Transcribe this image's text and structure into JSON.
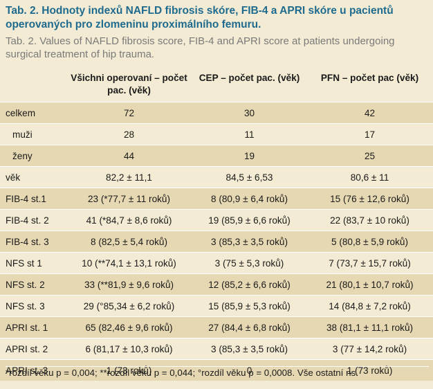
{
  "title_cz": "Tab. 2. Hodnoty indexů NAFLD fibrosis skóre, FIB-4 a APRI skóre u pacientů operovaných pro zlomeninu proximálního femuru.",
  "title_en": "Tab. 2. Values of NAFLD fibrosis score, FIB-4 and APRI score at patients undergoing surgical treatment of hip trauma.",
  "headers": [
    "",
    "Všichni operovaní – počet pac. (věk)",
    "CEP – počet pac. (věk)",
    "PFN – počet pac (věk)"
  ],
  "rows": [
    {
      "label": "celkem",
      "c1": "72",
      "c2": "30",
      "c3": "42"
    },
    {
      "label": "muži",
      "c1": "28",
      "c2": "11",
      "c3": "17"
    },
    {
      "label": "ženy",
      "c1": "44",
      "c2": "19",
      "c3": "25"
    },
    {
      "label": "věk",
      "c1": "82,2 ± 11,1",
      "c2": "84,5 ± 6,53",
      "c3": "80,6 ± 11"
    },
    {
      "label": "FIB-4 st.1",
      "c1": "23 (*77,7 ± 11 roků)",
      "c2": "8 (80,9 ± 6,4 roků)",
      "c3": "15 (76 ± 12,6 roků)"
    },
    {
      "label": "FIB-4 st. 2",
      "c1": "41 (*84,7 ± 8,6 roků)",
      "c2": "19 (85,9 ± 6,6 roků)",
      "c3": "22 (83,7 ± 10 roků)"
    },
    {
      "label": "FIB-4 st. 3",
      "c1": "8 (82,5 ± 5,4 roků)",
      "c2": "3 (85,3 ± 3,5 roků)",
      "c3": "5 (80,8 ± 5,9 roků)"
    },
    {
      "label": "NFS st 1",
      "c1": "10 (**74,1 ± 13,1 roků)",
      "c2": "3 (75 ± 5,3 roků)",
      "c3": "7 (73,7 ± 15,7 roků)"
    },
    {
      "label": "NFS st. 2",
      "c1": "33 (**81,9 ± 9,6 roků)",
      "c2": "12 (85,2 ± 6,6 roků)",
      "c3": "21 (80,1 ± 10,7 roků)"
    },
    {
      "label": "NFS st. 3",
      "c1": "29 (°85,34 ± 6,2 roků)",
      "c2": "15 (85,9 ± 5,3 roků)",
      "c3": "14 (84,8 ± 7,2 roků)"
    },
    {
      "label": "APRI st. 1",
      "c1": "65 (82,46 ± 9,6 roků)",
      "c2": "27 (84,4 ± 6,8 roků)",
      "c3": "38 (81,1 ± 11,1 roků)"
    },
    {
      "label": "APRI st. 2",
      "c1": "6 (81,17 ± 10,3 roků)",
      "c2": "3 (85,3 ± 3,5 roků)",
      "c3": "3 (77 ± 14,2 roků)"
    },
    {
      "label": "APRI st. 3",
      "c1": "1 (73 roků)",
      "c2": "0",
      "c3": "1 (73 roků)"
    }
  ],
  "footnote": "*rozdíl věku p = 0,004; **rozdíl věku p = 0,044; °rozdíl věku p = 0,0008. Vše ostatní ns.",
  "colors": {
    "title": "#1f6b8f",
    "subtitle": "#7a7a7a",
    "background": "#f3ebd3",
    "row_shade": "#e6d8b2"
  }
}
